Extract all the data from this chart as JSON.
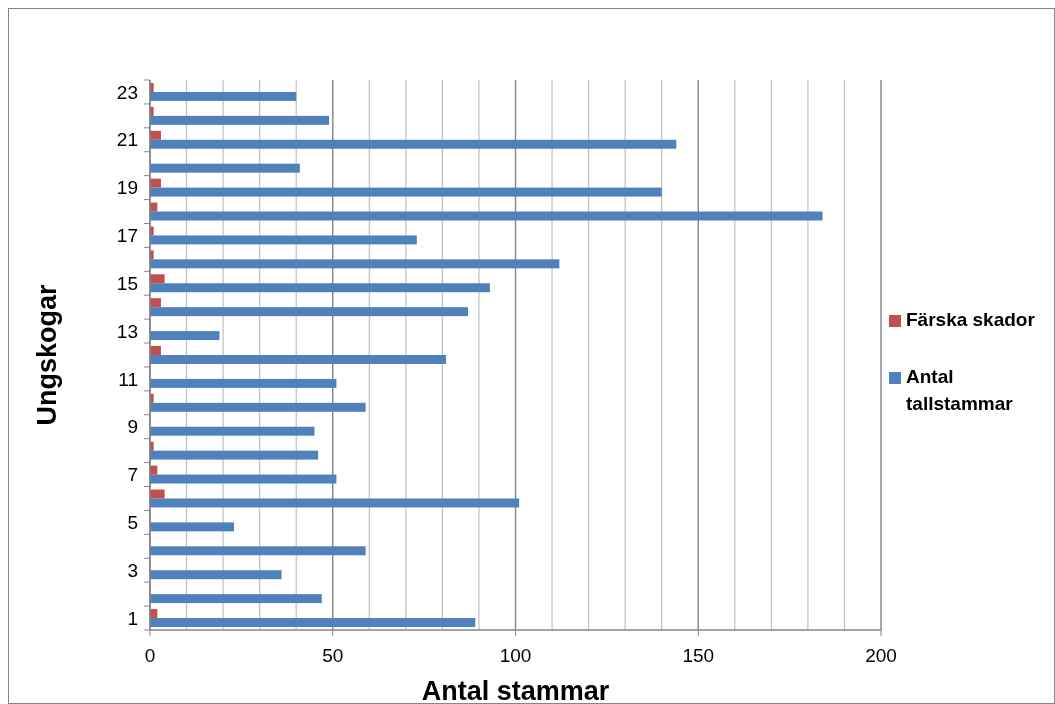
{
  "chart_data": {
    "type": "bar",
    "orientation": "horizontal",
    "xlabel": "Antal stammar",
    "ylabel": "Ungskogar",
    "categories": [
      "23",
      null,
      "21",
      null,
      "19",
      null,
      "17",
      null,
      "15",
      null,
      "13",
      null,
      "11",
      null,
      "9",
      null,
      "7",
      null,
      "5",
      null,
      "3",
      null,
      "1"
    ],
    "series": [
      {
        "name": "Färska skador",
        "color": "#c0504d",
        "values": [
          1,
          1,
          3,
          0,
          3,
          2,
          1,
          1,
          4,
          3,
          0,
          3,
          0,
          1,
          0,
          1,
          2,
          4,
          0,
          0,
          0,
          0,
          2
        ]
      },
      {
        "name": "Antal tallstammar",
        "color": "#4f81bd",
        "values": [
          40,
          49,
          144,
          41,
          140,
          184,
          73,
          112,
          93,
          87,
          19,
          81,
          51,
          59,
          45,
          46,
          51,
          101,
          23,
          59,
          36,
          47,
          89
        ]
      }
    ],
    "xlim": [
      0,
      200
    ],
    "xticks": [
      0,
      {
        "value": 10,
        "label": null
      },
      {
        "value": 20,
        "label": null
      },
      {
        "value": 30,
        "label": null
      },
      {
        "value": 40,
        "label": null
      },
      50,
      {
        "value": 60,
        "label": null
      },
      {
        "value": 70,
        "label": null
      },
      {
        "value": 80,
        "label": null
      },
      {
        "value": 90,
        "label": null
      },
      100,
      {
        "value": 110,
        "label": null
      },
      {
        "value": 120,
        "label": null
      },
      {
        "value": 130,
        "label": null
      },
      {
        "value": 140,
        "label": null
      },
      150,
      {
        "value": 160,
        "label": null
      },
      {
        "value": 170,
        "label": null
      },
      {
        "value": 180,
        "label": null
      },
      {
        "value": 190,
        "label": null
      },
      200
    ],
    "grid": "x",
    "legend": "right"
  }
}
